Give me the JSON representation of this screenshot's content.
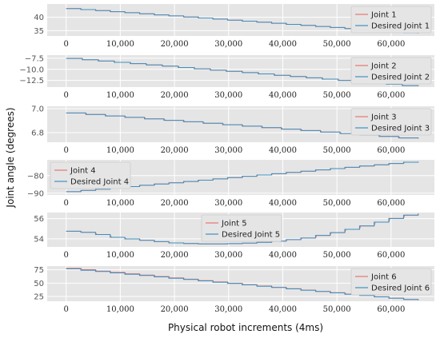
{
  "figure": {
    "ylabel": "Joint angle (degrees)",
    "xlabel": "Physical robot increments (4ms)"
  },
  "colors": {
    "panel_bg": "#e5e5e5",
    "grid": "#ffffff",
    "actual": "#e8766f",
    "desired": "#3f8fc0"
  },
  "chart_data": [
    {
      "type": "line",
      "xlim": [
        -3500,
        68000
      ],
      "ylim": [
        33,
        45
      ],
      "yticks": [
        35,
        40
      ],
      "xticks": [
        0,
        10000,
        20000,
        30000,
        40000,
        50000,
        60000
      ],
      "xtick_labels": [
        "0",
        "10,000",
        "20,000",
        "30,000",
        "40,000",
        "50,000",
        "60,000"
      ],
      "legend": "top-right",
      "series": [
        {
          "name": "Joint 1",
          "role": "actual",
          "x": [
            0,
            65000
          ],
          "y": [
            43.5,
            34.0
          ],
          "steps": 24
        },
        {
          "name": "Desired Joint 1",
          "role": "desired",
          "x": [
            0,
            65000
          ],
          "y": [
            43.5,
            34.0
          ],
          "steps": 24
        }
      ]
    },
    {
      "type": "line",
      "xlim": [
        -3500,
        68000
      ],
      "ylim": [
        -14,
        -6.8
      ],
      "yticks": [
        -7.5,
        -10.0,
        -12.5
      ],
      "ytick_labels": [
        "−7.5",
        "−10.0",
        "−12.5"
      ],
      "xticks": [
        0,
        10000,
        20000,
        30000,
        40000,
        50000,
        60000
      ],
      "xtick_labels": [
        "0",
        "10,000",
        "20,000",
        "30,000",
        "40,000",
        "50,000",
        "60,000"
      ],
      "legend": "top-right",
      "series": [
        {
          "name": "Joint 2",
          "role": "actual",
          "x": [
            0,
            65000
          ],
          "y": [
            -7.4,
            -13.8
          ],
          "steps": 22
        },
        {
          "name": "Desired Joint 2",
          "role": "desired",
          "x": [
            0,
            65000
          ],
          "y": [
            -7.4,
            -13.8
          ],
          "steps": 22
        }
      ]
    },
    {
      "type": "line",
      "xlim": [
        -3500,
        68000
      ],
      "ylim": [
        6.72,
        7.02
      ],
      "yticks": [
        6.8,
        7.0
      ],
      "ytick_labels": [
        "6.8",
        "7.0"
      ],
      "xticks": [
        0,
        10000,
        20000,
        30000,
        40000,
        50000,
        60000
      ],
      "xtick_labels": [
        "0",
        "10,000",
        "20,000",
        "30,000",
        "40,000",
        "50,000",
        "60,000"
      ],
      "legend": "top-right",
      "series": [
        {
          "name": "Joint 3",
          "role": "actual",
          "x": [
            0,
            65000
          ],
          "y": [
            6.97,
            6.75
          ],
          "steps": 18
        },
        {
          "name": "Desired Joint 3",
          "role": "desired",
          "x": [
            0,
            65000
          ],
          "y": [
            6.97,
            6.75
          ],
          "steps": 18
        }
      ]
    },
    {
      "type": "line",
      "xlim": [
        -3500,
        68000
      ],
      "ylim": [
        -91,
        -71
      ],
      "yticks": [
        -80,
        -90
      ],
      "ytick_labels": [
        "−80",
        "−90"
      ],
      "xticks": [
        0,
        10000,
        20000,
        30000,
        40000,
        50000,
        60000
      ],
      "xtick_labels": [
        "0",
        "10,000",
        "20,000",
        "30,000",
        "40,000",
        "50,000",
        "60,000"
      ],
      "legend": "top-left",
      "series": [
        {
          "name": "Joint 4",
          "role": "actual",
          "x": [
            0,
            65000
          ],
          "y": [
            -89.5,
            -72.0
          ],
          "steps": 24
        },
        {
          "name": "Desired Joint 4",
          "role": "desired",
          "x": [
            0,
            65000
          ],
          "y": [
            -89.5,
            -72.0
          ],
          "steps": 24
        }
      ]
    },
    {
      "type": "line",
      "xlim": [
        -3500,
        68000
      ],
      "ylim": [
        53.2,
        56.6
      ],
      "yticks": [
        54,
        56
      ],
      "ytick_labels": [
        "54",
        "56"
      ],
      "xticks": [
        0,
        10000,
        20000,
        30000,
        40000,
        50000,
        60000
      ],
      "xtick_labels": [
        "0",
        "10,000",
        "20,000",
        "30,000",
        "40,000",
        "50,000",
        "60,000"
      ],
      "legend": "top-center",
      "series": [
        {
          "name": "Joint 5",
          "role": "actual",
          "x": [
            0,
            5000,
            10000,
            20000,
            25000,
            30000,
            35000,
            40000,
            45000,
            50000,
            55000,
            60000,
            65000
          ],
          "y": [
            54.8,
            54.6,
            54.1,
            53.6,
            53.5,
            53.5,
            53.6,
            53.8,
            54.1,
            54.6,
            55.2,
            55.9,
            56.5
          ],
          "steps": 24
        },
        {
          "name": "Desired Joint 5",
          "role": "desired",
          "x": [
            0,
            5000,
            10000,
            20000,
            25000,
            30000,
            35000,
            40000,
            45000,
            50000,
            55000,
            60000,
            65000
          ],
          "y": [
            54.8,
            54.6,
            54.1,
            53.6,
            53.5,
            53.5,
            53.6,
            53.8,
            54.1,
            54.6,
            55.2,
            55.9,
            56.5
          ],
          "steps": 24
        }
      ]
    },
    {
      "type": "line",
      "xlim": [
        -3500,
        68000
      ],
      "ylim": [
        16,
        82
      ],
      "yticks": [
        25,
        50,
        75
      ],
      "ytick_labels": [
        "25",
        "50",
        "75"
      ],
      "xticks": [
        0,
        10000,
        20000,
        30000,
        40000,
        50000,
        60000
      ],
      "xtick_labels": [
        "0",
        "10,000",
        "20,000",
        "30,000",
        "40,000",
        "50,000",
        "60,000"
      ],
      "legend": "top-right",
      "series": [
        {
          "name": "Joint 6",
          "role": "actual",
          "x": [
            0,
            65000
          ],
          "y": [
            79,
            18
          ],
          "steps": 24
        },
        {
          "name": "Desired Joint 6",
          "role": "desired",
          "x": [
            0,
            65000
          ],
          "y": [
            78,
            18
          ],
          "steps": 24
        }
      ]
    }
  ]
}
